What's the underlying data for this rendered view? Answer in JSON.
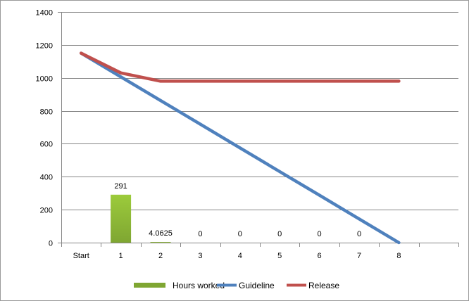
{
  "chart_data": {
    "type": "bar+line",
    "categories": [
      "Start",
      "1",
      "2",
      "3",
      "4",
      "5",
      "6",
      "7",
      "8"
    ],
    "ylim": [
      0,
      1400
    ],
    "yticks": [
      0,
      200,
      400,
      600,
      800,
      1000,
      1200,
      1400
    ],
    "grid": true,
    "legend_position": "bottom",
    "bars": {
      "name": "Hours worked",
      "color": "#7fa632",
      "values": [
        null,
        291,
        4.0625,
        0,
        0,
        0,
        0,
        0,
        null
      ],
      "labels": [
        "",
        "291",
        "4.0625",
        "0",
        "0",
        "0",
        "0",
        "0",
        ""
      ]
    },
    "series": [
      {
        "name": "Guideline",
        "type": "line",
        "color": "#4f81bd",
        "values": [
          1150,
          1006.25,
          862.5,
          718.75,
          575,
          431.25,
          287.5,
          143.75,
          0
        ]
      },
      {
        "name": "Release",
        "type": "line",
        "color": "#c0504d",
        "values": [
          1150,
          1030,
          980,
          980,
          980,
          980,
          980,
          980,
          980
        ]
      }
    ]
  }
}
